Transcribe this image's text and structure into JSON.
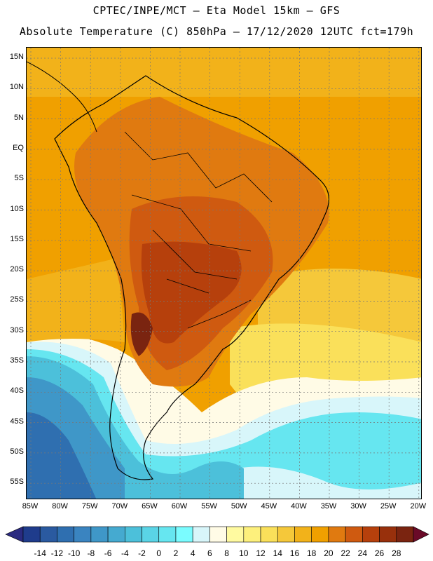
{
  "header": {
    "line1": "CPTEC/INPE/MCT –  Eta Model 15km – GFS",
    "line2": "Absolute Temperature (C) 850hPa – 17/12/2020 12UTC fct=179h"
  },
  "axes": {
    "lat_labels": [
      "15N",
      "10N",
      "5N",
      "EQ",
      "5S",
      "10S",
      "15S",
      "20S",
      "25S",
      "30S",
      "35S",
      "40S",
      "45S",
      "50S",
      "55S"
    ],
    "lon_labels": [
      "85W",
      "80W",
      "75W",
      "70W",
      "65W",
      "60W",
      "55W",
      "50W",
      "45W",
      "40W",
      "35W",
      "30W",
      "25W",
      "20W"
    ]
  },
  "colorbar": {
    "labels": [
      "-14",
      "-12",
      "-10",
      "-8",
      "-6",
      "-4",
      "-2",
      "0",
      "2",
      "4",
      "6",
      "8",
      "10",
      "12",
      "14",
      "16",
      "18",
      "20",
      "22",
      "24",
      "26",
      "28"
    ],
    "colors": [
      "#1f3c8c",
      "#2a5aa0",
      "#2f6fb0",
      "#3a84c0",
      "#3f97c8",
      "#45aad0",
      "#4cc0da",
      "#5ad4e6",
      "#66e6f0",
      "#7afcff",
      "#d8f6fa",
      "#fffbe6",
      "#fffaa0",
      "#fdf07c",
      "#fae05a",
      "#f5c83a",
      "#f2b21a",
      "#f0a000",
      "#e07a10",
      "#cf5a10",
      "#b6400c",
      "#98300c",
      "#7a2410"
    ],
    "under_color": "#2a2a80",
    "over_color": "#6a0a28"
  }
}
